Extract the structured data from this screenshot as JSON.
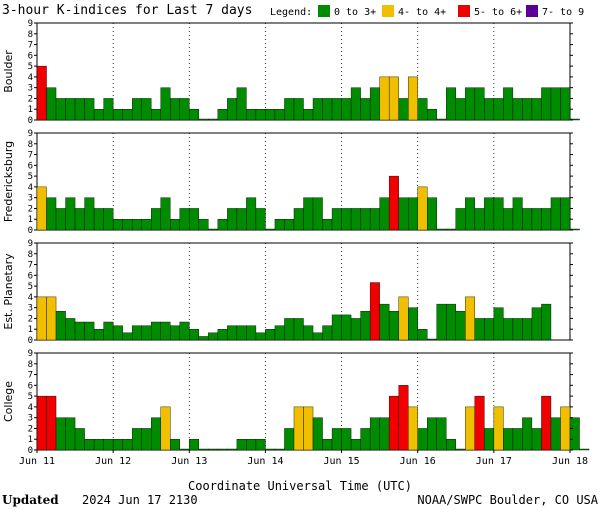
{
  "header": {
    "title": "3-hour K-indices for Last 7 days",
    "legend_label": "Legend:"
  },
  "legend": [
    {
      "label": "0 to 3+",
      "color": "#008c00"
    },
    {
      "label": "4- to 4+",
      "color": "#f0c000"
    },
    {
      "label": "5- to 6+",
      "color": "#f00000"
    },
    {
      "label": "7- to 9",
      "color": "#5a0096"
    }
  ],
  "footer": {
    "updated_label": "Updated",
    "updated_value": "2024 Jun 17 2130",
    "source": "NOAA/SWPC Boulder, CO USA"
  },
  "chart_data": {
    "type": "bar",
    "xlabel": "Coordinate Universal Time (UTC)",
    "x_ticks": [
      "Jun 11",
      "Jun 12",
      "Jun 13",
      "Jun 14",
      "Jun 15",
      "Jun 16",
      "Jun 17",
      "Jun 18"
    ],
    "y_ticks": [
      0,
      1,
      2,
      3,
      4,
      5,
      6,
      7,
      8,
      9
    ],
    "ylim": [
      0,
      9
    ],
    "interval_hours": 3,
    "grid": true,
    "legend_position": "top-right",
    "color_scale": [
      {
        "min": 0,
        "max": 3.99,
        "color": "#008c00"
      },
      {
        "min": 4,
        "max": 4.99,
        "color": "#f0c000"
      },
      {
        "min": 5,
        "max": 6.99,
        "color": "#f00000"
      },
      {
        "min": 7,
        "max": 9,
        "color": "#5a0096"
      }
    ],
    "panels": [
      {
        "name": "Boulder",
        "values": [
          5,
          3,
          2,
          2,
          2,
          2,
          1,
          2,
          1,
          1,
          2,
          2,
          1,
          3,
          2,
          2,
          1,
          0,
          0,
          1,
          2,
          3,
          1,
          1,
          1,
          1,
          2,
          2,
          1,
          2,
          2,
          2,
          2,
          3,
          2,
          3,
          4,
          4,
          2,
          4,
          2,
          1,
          0,
          3,
          2,
          3,
          3,
          2,
          2,
          3,
          2,
          2,
          2,
          3,
          3,
          3,
          0
        ]
      },
      {
        "name": "Fredericksburg",
        "values": [
          4,
          3,
          2,
          3,
          2,
          3,
          2,
          2,
          1,
          1,
          1,
          1,
          2,
          3,
          1,
          2,
          2,
          1,
          0,
          1,
          2,
          2,
          3,
          2,
          0,
          1,
          1,
          2,
          3,
          3,
          1,
          2,
          2,
          2,
          2,
          2,
          3,
          5,
          3,
          3,
          4,
          3,
          0,
          0,
          2,
          3,
          2,
          3,
          3,
          2,
          3,
          2,
          2,
          2,
          3,
          3,
          0
        ]
      },
      {
        "name": "Est. Planetary",
        "values": [
          4,
          4,
          2.67,
          2,
          1.67,
          1.67,
          1,
          1.67,
          1.33,
          0.67,
          1.33,
          1.33,
          1.67,
          1.67,
          1.33,
          1.67,
          1,
          0.33,
          0.67,
          1,
          1.33,
          1.33,
          1.33,
          0.67,
          1,
          1.33,
          2,
          2,
          1.33,
          0.67,
          1.33,
          2.33,
          2.33,
          2,
          2.67,
          5.33,
          3.33,
          2.67,
          4,
          3,
          1,
          0,
          3.33,
          3.33,
          2.67,
          4,
          2,
          2,
          3,
          2,
          2,
          2,
          3,
          3.33
        ]
      },
      {
        "name": "College",
        "values": [
          5,
          5,
          3,
          3,
          2,
          1,
          1,
          1,
          1,
          1,
          2,
          2,
          3,
          4,
          1,
          0,
          1,
          0,
          0,
          0,
          0,
          1,
          1,
          1,
          0,
          0,
          2,
          4,
          4,
          3,
          1,
          2,
          2,
          1,
          2,
          3,
          3,
          5,
          6,
          4,
          2,
          3,
          3,
          1,
          0,
          4,
          5,
          2,
          4,
          2,
          2,
          3,
          2,
          5,
          3,
          4,
          3,
          0
        ]
      }
    ]
  }
}
